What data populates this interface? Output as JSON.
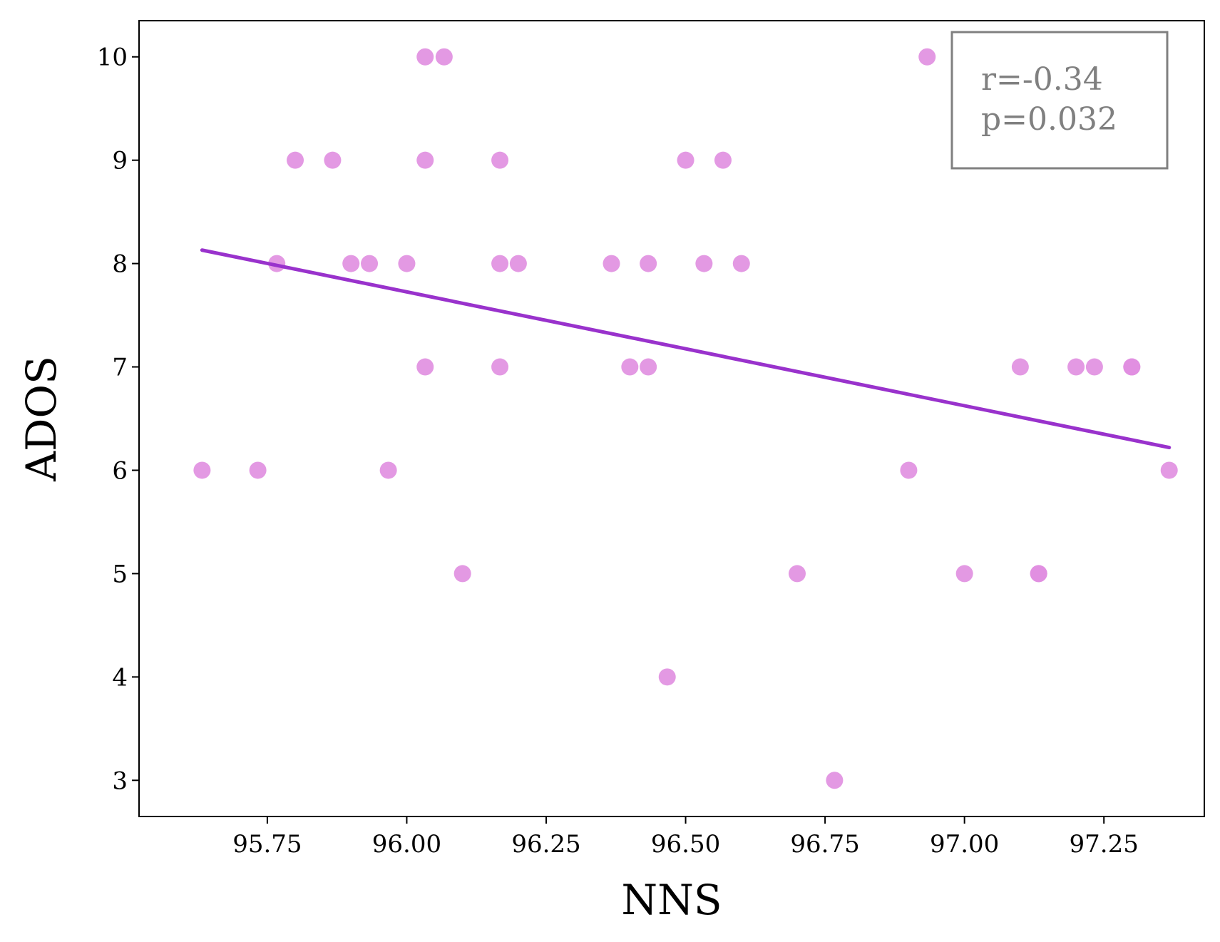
{
  "chart_data": {
    "type": "scatter",
    "xlabel": "NNS",
    "ylabel": "ADOS",
    "xlim": [
      95.52,
      97.43
    ],
    "ylim": [
      2.65,
      10.35
    ],
    "xticks": [
      "95.75",
      "96.00",
      "96.25",
      "96.50",
      "96.75",
      "97.00",
      "97.25"
    ],
    "yticks": [
      "3",
      "4",
      "5",
      "6",
      "7",
      "8",
      "9",
      "10"
    ],
    "grid": false,
    "points": [
      {
        "x": 95.633,
        "y": 6
      },
      {
        "x": 95.733,
        "y": 6
      },
      {
        "x": 95.767,
        "y": 8
      },
      {
        "x": 95.8,
        "y": 9
      },
      {
        "x": 95.867,
        "y": 9
      },
      {
        "x": 95.9,
        "y": 8
      },
      {
        "x": 95.933,
        "y": 8
      },
      {
        "x": 95.967,
        "y": 6
      },
      {
        "x": 96.0,
        "y": 8
      },
      {
        "x": 96.033,
        "y": 10
      },
      {
        "x": 96.067,
        "y": 10
      },
      {
        "x": 96.033,
        "y": 9
      },
      {
        "x": 96.033,
        "y": 7
      },
      {
        "x": 96.1,
        "y": 5
      },
      {
        "x": 96.167,
        "y": 9
      },
      {
        "x": 96.167,
        "y": 8
      },
      {
        "x": 96.2,
        "y": 8
      },
      {
        "x": 96.167,
        "y": 7
      },
      {
        "x": 96.367,
        "y": 8
      },
      {
        "x": 96.4,
        "y": 7
      },
      {
        "x": 96.433,
        "y": 8
      },
      {
        "x": 96.433,
        "y": 7
      },
      {
        "x": 96.467,
        "y": 4
      },
      {
        "x": 96.5,
        "y": 9
      },
      {
        "x": 96.533,
        "y": 8
      },
      {
        "x": 96.567,
        "y": 9
      },
      {
        "x": 96.6,
        "y": 8
      },
      {
        "x": 96.7,
        "y": 5
      },
      {
        "x": 96.767,
        "y": 3
      },
      {
        "x": 96.9,
        "y": 6
      },
      {
        "x": 96.933,
        "y": 10
      },
      {
        "x": 97.0,
        "y": 5
      },
      {
        "x": 97.1,
        "y": 7
      },
      {
        "x": 97.133,
        "y": 5
      },
      {
        "x": 97.133,
        "y": 5
      },
      {
        "x": 97.2,
        "y": 7
      },
      {
        "x": 97.233,
        "y": 7
      },
      {
        "x": 97.3,
        "y": 7
      },
      {
        "x": 97.3,
        "y": 7
      },
      {
        "x": 97.367,
        "y": 6
      }
    ],
    "fit_line": {
      "x": [
        95.633,
        97.367
      ],
      "y": [
        8.13,
        6.22
      ]
    },
    "annotation": {
      "r": "r=-0.34",
      "p": "p=0.032"
    },
    "annotation_position": "top-right",
    "colors": {
      "points": "#e08ee0",
      "line": "#9932cc",
      "annotation": "#808080",
      "frame": "#000000"
    }
  }
}
